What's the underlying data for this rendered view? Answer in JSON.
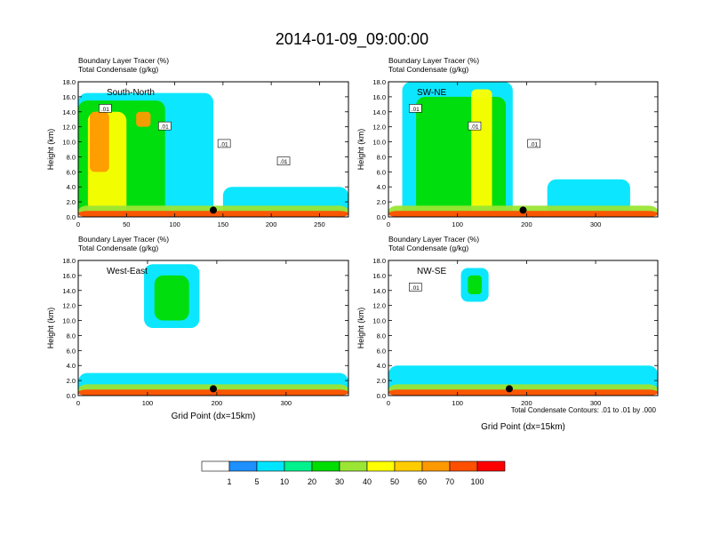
{
  "page": {
    "title": "2014-01-09_09:00:00",
    "footnote": "Total Condensate Contours: .01 to .01 by .000"
  },
  "colorbar": {
    "colors": [
      "#ffffff",
      "#1e90ff",
      "#00e5ff",
      "#00f28c",
      "#00dd00",
      "#9be534",
      "#ffff00",
      "#ffcc00",
      "#ff9900",
      "#ff4f00",
      "#ff0000"
    ],
    "labels": [
      "1",
      "5",
      "10",
      "20",
      "30",
      "40",
      "50",
      "60",
      "70",
      "100"
    ]
  },
  "chart_data": [
    {
      "type": "heatmap",
      "title": "South-North",
      "subtitle_left_1": "Boundary Layer Tracer   (%)",
      "subtitle_left_2": "Total Condensate   (g/kg)",
      "ylabel": "Height (km)",
      "xlabel": "",
      "xlim": [
        0,
        280
      ],
      "ylim": [
        0,
        18
      ],
      "xticks": [
        0,
        50,
        100,
        150,
        200,
        250
      ],
      "yticks": [
        0,
        2,
        4,
        6,
        8,
        10,
        12,
        14,
        16,
        18
      ],
      "ytick_labels": [
        "0.0",
        "2.0",
        "4.0",
        "6.0",
        "8.0",
        "10.0",
        "12.0",
        "14.0",
        "16.0",
        "18.0"
      ],
      "contour_labels": [
        ".01",
        ".01",
        ".01",
        ".01"
      ],
      "marker": {
        "x": 140,
        "y": 0.9
      },
      "regions": [
        {
          "value": 5,
          "x": [
            0,
            140
          ],
          "y": [
            0,
            16.5
          ]
        },
        {
          "value": 20,
          "x": [
            0,
            90
          ],
          "y": [
            0,
            15.5
          ]
        },
        {
          "value": 40,
          "x": [
            10,
            50
          ],
          "y": [
            0,
            14
          ]
        },
        {
          "value": 60,
          "x": [
            12,
            32
          ],
          "y": [
            6,
            14
          ]
        },
        {
          "value": 60,
          "x": [
            60,
            75
          ],
          "y": [
            12,
            14
          ]
        },
        {
          "value": 5,
          "x": [
            150,
            280
          ],
          "y": [
            0,
            4
          ]
        },
        {
          "value": 30,
          "x": [
            0,
            280
          ],
          "y": [
            0,
            1.5
          ]
        },
        {
          "value": 70,
          "x": [
            0,
            280
          ],
          "y": [
            0,
            0.8
          ]
        }
      ]
    },
    {
      "type": "heatmap",
      "title": "SW-NE",
      "subtitle_left_1": "Boundary Layer Tracer   (%)",
      "subtitle_left_2": "Total Condensate   (g/kg)",
      "ylabel": "Height (km)",
      "xlabel": "",
      "xlim": [
        0,
        390
      ],
      "ylim": [
        0,
        18
      ],
      "xticks": [
        0,
        100,
        200,
        300
      ],
      "yticks": [
        0,
        2,
        4,
        6,
        8,
        10,
        12,
        14,
        16,
        18
      ],
      "ytick_labels": [
        "0.0",
        "2.0",
        "4.0",
        "6.0",
        "8.0",
        "10.0",
        "12.0",
        "14.0",
        "16.0",
        "18.0"
      ],
      "contour_labels": [
        ".01",
        ".01",
        ".01"
      ],
      "marker": {
        "x": 195,
        "y": 0.9
      },
      "regions": [
        {
          "value": 5,
          "x": [
            20,
            180
          ],
          "y": [
            0,
            18
          ]
        },
        {
          "value": 20,
          "x": [
            40,
            170
          ],
          "y": [
            0,
            16
          ]
        },
        {
          "value": 40,
          "x": [
            120,
            150
          ],
          "y": [
            0,
            17
          ]
        },
        {
          "value": 5,
          "x": [
            230,
            350
          ],
          "y": [
            0,
            5
          ]
        },
        {
          "value": 30,
          "x": [
            0,
            390
          ],
          "y": [
            0,
            1.5
          ]
        },
        {
          "value": 70,
          "x": [
            0,
            390
          ],
          "y": [
            0,
            0.8
          ]
        }
      ]
    },
    {
      "type": "heatmap",
      "title": "West-East",
      "subtitle_left_1": "Boundary Layer Tracer   (%)",
      "subtitle_left_2": "Total Condensate   (g/kg)",
      "ylabel": "Height (km)",
      "xlabel": "Grid Point (dx=15km)",
      "xlim": [
        0,
        390
      ],
      "ylim": [
        0,
        18
      ],
      "xticks": [
        0,
        100,
        200,
        300
      ],
      "yticks": [
        0,
        2,
        4,
        6,
        8,
        10,
        12,
        14,
        16,
        18
      ],
      "ytick_labels": [
        "0.0",
        "2.0",
        "4.0",
        "6.0",
        "8.0",
        "10.0",
        "12.0",
        "14.0",
        "16.0",
        "18.0"
      ],
      "contour_labels": [],
      "marker": {
        "x": 195,
        "y": 0.9
      },
      "regions": [
        {
          "value": 5,
          "x": [
            95,
            175
          ],
          "y": [
            9,
            17.5
          ]
        },
        {
          "value": 20,
          "x": [
            110,
            160
          ],
          "y": [
            10,
            16
          ]
        },
        {
          "value": 5,
          "x": [
            0,
            390
          ],
          "y": [
            0,
            3
          ]
        },
        {
          "value": 30,
          "x": [
            0,
            390
          ],
          "y": [
            0,
            1.5
          ]
        },
        {
          "value": 70,
          "x": [
            0,
            390
          ],
          "y": [
            0,
            0.8
          ]
        }
      ]
    },
    {
      "type": "heatmap",
      "title": "NW-SE",
      "subtitle_left_1": "Boundary Layer Tracer   (%)",
      "subtitle_left_2": "Total Condensate   (g/kg)",
      "ylabel": "Height (km)",
      "xlabel": "Grid Point (dx=15km)",
      "xlim": [
        0,
        390
      ],
      "ylim": [
        0,
        18
      ],
      "xticks": [
        0,
        100,
        200,
        300
      ],
      "yticks": [
        0,
        2,
        4,
        6,
        8,
        10,
        12,
        14,
        16,
        18
      ],
      "ytick_labels": [
        "0.0",
        "2.0",
        "4.0",
        "6.0",
        "8.0",
        "10.0",
        "12.0",
        "14.0",
        "16.0",
        "18.0"
      ],
      "contour_labels": [
        ".01"
      ],
      "marker": {
        "x": 175,
        "y": 0.9
      },
      "regions": [
        {
          "value": 5,
          "x": [
            105,
            145
          ],
          "y": [
            12.5,
            17
          ]
        },
        {
          "value": 20,
          "x": [
            115,
            135
          ],
          "y": [
            13.5,
            16
          ]
        },
        {
          "value": 5,
          "x": [
            0,
            390
          ],
          "y": [
            0,
            4
          ]
        },
        {
          "value": 30,
          "x": [
            0,
            390
          ],
          "y": [
            0,
            1.5
          ]
        },
        {
          "value": 70,
          "x": [
            0,
            390
          ],
          "y": [
            0,
            0.8
          ]
        }
      ]
    }
  ]
}
